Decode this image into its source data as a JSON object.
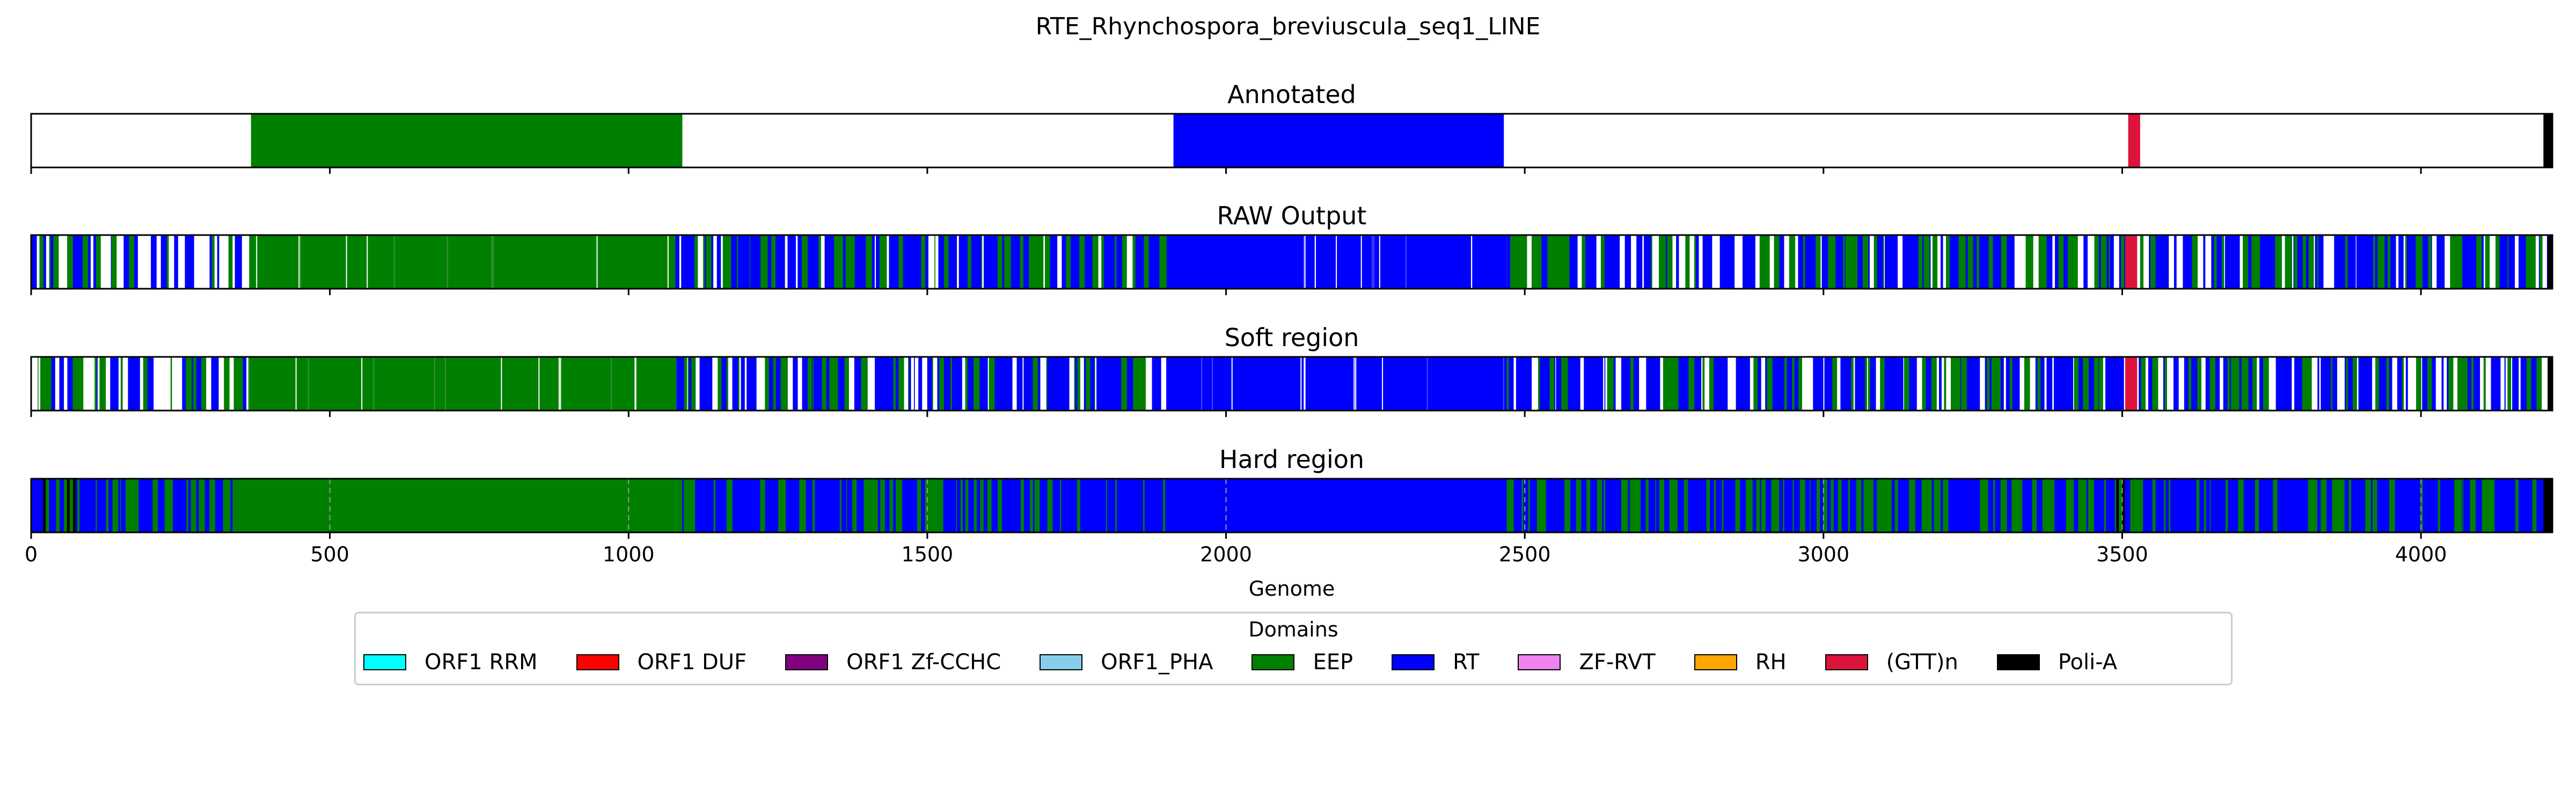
{
  "figure_title": "RTE_Rhynchospora_breviuscula_seq1_LINE",
  "chart_data": {
    "type": "bar",
    "subtype": "genome-domain-tracks",
    "xlabel": "Genome",
    "xlim": [
      0,
      4220
    ],
    "xticks": [
      0,
      500,
      1000,
      1500,
      2000,
      2500,
      3000,
      3500,
      4000
    ],
    "xtick_labels": [
      "0",
      "500",
      "1000",
      "1500",
      "2000",
      "2500",
      "3000",
      "3500",
      "4000"
    ],
    "legend": {
      "title": "Domains",
      "placement": "lower-center",
      "entries": [
        {
          "label": "ORF1 RRM",
          "color": "#00ffff"
        },
        {
          "label": "ORF1 DUF",
          "color": "#ff0000"
        },
        {
          "label": "ORF1 Zf-CCHC",
          "color": "#800080"
        },
        {
          "label": "ORF1_PHA",
          "color": "#87ceeb"
        },
        {
          "label": "EEP",
          "color": "#008000"
        },
        {
          "label": "RT",
          "color": "#0000ff"
        },
        {
          "label": "ZF-RVT",
          "color": "#ee82ee"
        },
        {
          "label": "RH",
          "color": "#ffa500"
        },
        {
          "label": "(GTT)n",
          "color": "#dc143c"
        },
        {
          "label": "Poli-A",
          "color": "#000000"
        }
      ]
    },
    "tracks": [
      {
        "title": "Annotated",
        "segments": [
          {
            "domain": "EEP",
            "start": 368,
            "end": 1090
          },
          {
            "domain": "RT",
            "start": 1912,
            "end": 2465
          },
          {
            "domain": "(GTT)n",
            "start": 3510,
            "end": 3530
          },
          {
            "domain": "Poli-A",
            "start": 4205,
            "end": 4220
          }
        ]
      },
      {
        "title": "RAW Output",
        "segments": [
          {
            "domain": "EEP",
            "start": 365,
            "end": 1078
          },
          {
            "domain": "RT",
            "start": 1905,
            "end": 2470
          },
          {
            "domain": "(GTT)n",
            "start": 3505,
            "end": 3525
          },
          {
            "domain": "Poli-A",
            "start": 4212,
            "end": 4220
          }
        ],
        "mixed_regions": [
          {
            "start": 0,
            "end": 365,
            "domains": [
              "RT",
              "EEP"
            ],
            "density": 0.55,
            "white_gaps": true
          },
          {
            "start": 1078,
            "end": 1905,
            "domains": [
              "RT",
              "EEP"
            ],
            "density": 0.85,
            "white_gaps": true
          },
          {
            "start": 2470,
            "end": 3505,
            "domains": [
              "RT",
              "EEP"
            ],
            "density": 0.8,
            "white_gaps": true
          },
          {
            "start": 3525,
            "end": 4212,
            "domains": [
              "RT",
              "EEP"
            ],
            "density": 0.8,
            "white_gaps": true
          }
        ],
        "dominant_gaps": [
          [
            1085,
            1088
          ],
          [
            1280,
            1283
          ],
          [
            2130,
            2133
          ],
          [
            2410,
            2412
          ]
        ]
      },
      {
        "title": "Soft region",
        "segments": [
          {
            "domain": "EEP",
            "start": 365,
            "end": 1080
          },
          {
            "domain": "RT",
            "start": 1905,
            "end": 2470
          },
          {
            "domain": "(GTT)n",
            "start": 3505,
            "end": 3525
          },
          {
            "domain": "Poli-A",
            "start": 4212,
            "end": 4220
          }
        ],
        "mixed_regions": [
          {
            "start": 0,
            "end": 365,
            "domains": [
              "RT",
              "EEP"
            ],
            "density": 0.55,
            "white_gaps": true
          },
          {
            "start": 1080,
            "end": 1905,
            "domains": [
              "RT",
              "EEP"
            ],
            "density": 0.85,
            "white_gaps": true
          },
          {
            "start": 2470,
            "end": 3505,
            "domains": [
              "RT",
              "EEP"
            ],
            "density": 0.8,
            "white_gaps": true
          },
          {
            "start": 3525,
            "end": 4212,
            "domains": [
              "RT",
              "EEP"
            ],
            "density": 0.8,
            "white_gaps": true
          }
        ],
        "dominant_gaps": [
          [
            1010,
            1013
          ],
          [
            2130,
            2133
          ]
        ]
      },
      {
        "title": "Hard region",
        "segments": [
          {
            "domain": "EEP",
            "start": 365,
            "end": 1080
          },
          {
            "domain": "RT",
            "start": 1905,
            "end": 2470
          },
          {
            "domain": "Poli-A",
            "start": 4205,
            "end": 4220
          }
        ],
        "mixed_regions": [
          {
            "start": 0,
            "end": 365,
            "domains": [
              "RT",
              "EEP"
            ],
            "density": 1.0,
            "white_gaps": false
          },
          {
            "start": 1080,
            "end": 1905,
            "domains": [
              "RT",
              "EEP"
            ],
            "density": 1.0,
            "white_gaps": false
          },
          {
            "start": 2470,
            "end": 4205,
            "domains": [
              "RT",
              "EEP"
            ],
            "density": 1.0,
            "white_gaps": false
          }
        ],
        "poli_a_marks": [
          20,
          60,
          70,
          3490,
          3500
        ],
        "grid": "x-dashed"
      }
    ]
  }
}
